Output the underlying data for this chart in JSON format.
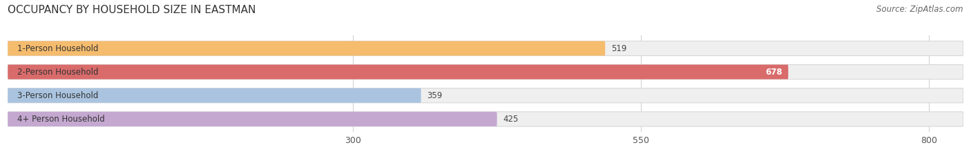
{
  "title": "OCCUPANCY BY HOUSEHOLD SIZE IN EASTMAN",
  "source": "Source: ZipAtlas.com",
  "categories": [
    "1-Person Household",
    "2-Person Household",
    "3-Person Household",
    "4+ Person Household"
  ],
  "values": [
    519,
    678,
    359,
    425
  ],
  "bar_colors": [
    "#f5bc6e",
    "#d96b6b",
    "#aac4e0",
    "#c4a8d0"
  ],
  "label_colors": [
    "#444444",
    "#ffffff",
    "#444444",
    "#444444"
  ],
  "xlim_min": 0,
  "xlim_max": 830,
  "data_min": 0,
  "xticks": [
    300,
    550,
    800
  ],
  "title_fontsize": 11,
  "source_fontsize": 8.5,
  "label_fontsize": 8.5,
  "value_fontsize": 8.5,
  "tick_fontsize": 9,
  "background_color": "#ffffff",
  "bar_background_color": "#efefef",
  "bar_height": 0.62,
  "bar_gap": 0.38
}
